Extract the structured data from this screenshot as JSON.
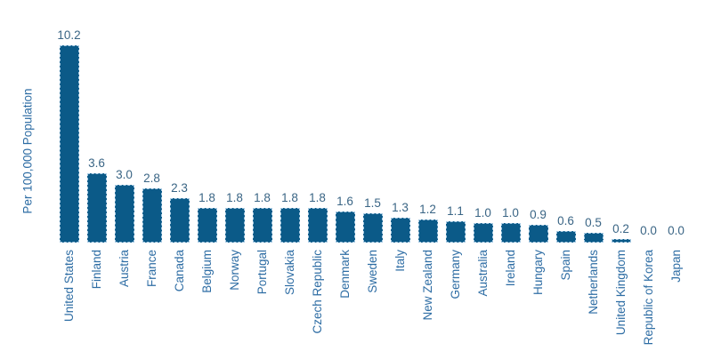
{
  "chart_data": {
    "type": "bar",
    "title": "",
    "xlabel": "",
    "ylabel": "Per 100,000 Population",
    "categories": [
      "United States",
      "Finland",
      "Austria",
      "France",
      "Canada",
      "Belgium",
      "Norway",
      "Portugal",
      "Slovakia",
      "Czech Republic",
      "Denmark",
      "Sweden",
      "Italy",
      "New Zealand",
      "Germany",
      "Australia",
      "Ireland",
      "Hungary",
      "Spain",
      "Netherlands",
      "United Kingdom",
      "Republic of Korea",
      "Japan"
    ],
    "values": [
      10.2,
      3.6,
      3.0,
      2.8,
      2.3,
      1.8,
      1.8,
      1.8,
      1.8,
      1.8,
      1.6,
      1.5,
      1.3,
      1.2,
      1.1,
      1.0,
      1.0,
      0.9,
      0.6,
      0.5,
      0.2,
      0.0,
      0.0
    ],
    "value_labels": [
      "10.2",
      "3.6",
      "3.0",
      "2.8",
      "2.3",
      "1.8",
      "1.8",
      "1.8",
      "1.8",
      "1.8",
      "1.6",
      "1.5",
      "1.3",
      "1.2",
      "1.1",
      "1.0",
      "1.0",
      "0.9",
      "0.6",
      "0.5",
      "0.2",
      "0.0",
      "0.0"
    ],
    "ylim": [
      0,
      10.8
    ],
    "grid": false,
    "legend": false,
    "colors": {
      "bar_fill": "#0b5a88",
      "bar_border": "#a9cbe3",
      "value_label": "#3a6585",
      "category_label": "#2e6da4",
      "background": "#ffffff"
    }
  }
}
